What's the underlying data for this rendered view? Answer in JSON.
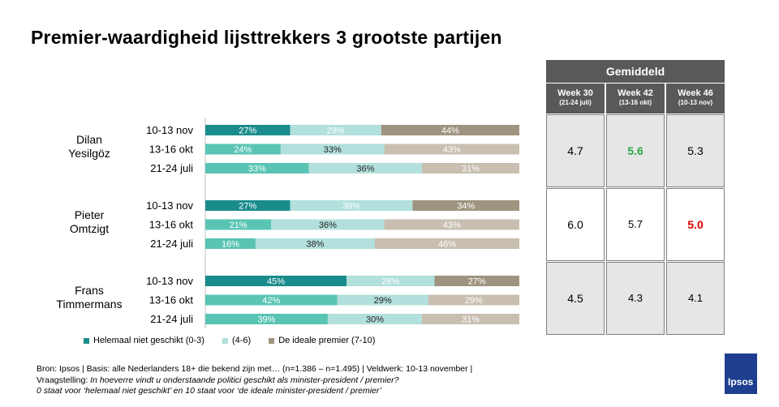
{
  "title": "Premier-waardigheid lijsttrekkers 3 grootste partijen",
  "colors": {
    "low": "#1a8c8c",
    "mid": "#b2e0dc",
    "high": "#9e9480",
    "mid_alt": "#5ac4b4",
    "high_alt": "#c8bfb1"
  },
  "chart_data": {
    "type": "bar",
    "orientation": "horizontal-stacked-100",
    "series_names": [
      "Helemaal niet geschikt (0-3)",
      "(4-6)",
      "De ideale premier (7-10)"
    ],
    "groups": [
      {
        "name": "Dilan\nYesilgöz",
        "rows": [
          {
            "label": "10-13 nov",
            "values": [
              27,
              29,
              44
            ]
          },
          {
            "label": "13-16 okt",
            "values": [
              24,
              33,
              43
            ]
          },
          {
            "label": "21-24 juli",
            "values": [
              33,
              36,
              31
            ]
          }
        ]
      },
      {
        "name": "Pieter\nOmtzigt",
        "rows": [
          {
            "label": "10-13 nov",
            "values": [
              27,
              39,
              34
            ]
          },
          {
            "label": "13-16 okt",
            "values": [
              21,
              36,
              43
            ]
          },
          {
            "label": "21-24 juli",
            "values": [
              16,
              38,
              46
            ]
          }
        ]
      },
      {
        "name": "Frans\nTimmermans",
        "rows": [
          {
            "label": "10-13 nov",
            "values": [
              45,
              28,
              27
            ]
          },
          {
            "label": "13-16 okt",
            "values": [
              42,
              29,
              29
            ]
          },
          {
            "label": "21-24 juli",
            "values": [
              39,
              30,
              31
            ]
          }
        ]
      }
    ]
  },
  "table": {
    "header": "Gemiddeld",
    "weeks": [
      {
        "week": "Week 30",
        "dates": "(21-24 juli)"
      },
      {
        "week": "Week 42",
        "dates": "(13-16 okt)"
      },
      {
        "week": "Week 46",
        "dates": "(10-13 nov)"
      }
    ],
    "rows": [
      [
        "4.7",
        "5.6",
        "5.3"
      ],
      [
        "6.0",
        "5.7",
        "5.0"
      ],
      [
        "4.5",
        "4.3",
        "4.1"
      ]
    ]
  },
  "legend": [
    "Helemaal niet geschikt (0-3)",
    "(4-6)",
    "De ideale premier (7-10)"
  ],
  "footer": {
    "line1": "Bron: Ipsos | Basis: alle Nederlanders  18+ die bekend zijn met… (n=1.386 – n=1.495) | Veldwerk:  10-13  november  |",
    "line2_prefix": "Vraagstelling: ",
    "line2_italic": "In hoeverre  vindt u onderstaande  politici geschikt als minister-president  / premier?",
    "line3": "0 staat voor  ‘helemaal niet geschikt’ en 10 staat voor ‘de ideale minister-president  / premier’"
  },
  "logo": "Ipsos"
}
